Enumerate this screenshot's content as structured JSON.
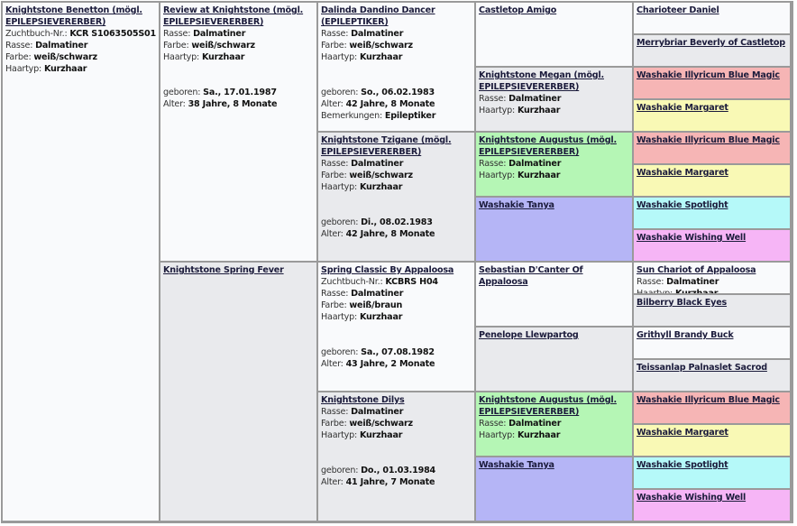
{
  "colors": {
    "border": "#9a9a9a",
    "white": "#f9fafc",
    "gray": "#e9eaed",
    "red": "#f6b5b5",
    "yellow": "#f9f9b5",
    "green": "#b5f6b5",
    "blue": "#b5b5f6",
    "cyan": "#b5f9f9",
    "magenta": "#f6b5f6"
  },
  "generations": [
    [
      {
        "bg": "white",
        "name": "Knightstone Benetton (mögl. EPILEPSIEVERERBER)",
        "fields": [
          {
            "label": "Zuchtbuch-Nr.: ",
            "value": "KCR S1063505S01"
          },
          {
            "label": "Rasse: ",
            "value": "Dalmatiner"
          },
          {
            "label": "Farbe: ",
            "value": "weiß/schwarz"
          },
          {
            "label": "Haartyp: ",
            "value": "Kurzhaar"
          }
        ],
        "birth": []
      }
    ],
    [
      {
        "bg": "white",
        "name": "Review at Knightstone (mögl. EPILEPSIEVERERBER)",
        "fields": [
          {
            "label": "Rasse: ",
            "value": "Dalmatiner"
          },
          {
            "label": "Farbe: ",
            "value": "weiß/schwarz"
          },
          {
            "label": "Haartyp: ",
            "value": "Kurzhaar"
          }
        ],
        "birth": [
          {
            "label": "geboren: ",
            "value": "Sa., 17.01.1987"
          },
          {
            "label": "Alter: ",
            "value": "38 Jahre, 8 Monate"
          }
        ]
      },
      {
        "bg": "gray",
        "name": "Knightstone Spring Fever",
        "fields": [],
        "birth": []
      }
    ],
    [
      {
        "bg": "white",
        "name": "Dalinda Dandino Dancer (EPILEPTIKER)",
        "fields": [
          {
            "label": "Rasse: ",
            "value": "Dalmatiner"
          },
          {
            "label": "Farbe: ",
            "value": "weiß/schwarz"
          },
          {
            "label": "Haartyp: ",
            "value": "Kurzhaar"
          }
        ],
        "birth": [
          {
            "label": "geboren: ",
            "value": "So., 06.02.1983"
          },
          {
            "label": "Alter: ",
            "value": "42 Jahre, 8 Monate"
          },
          {
            "label": "Bemerkungen: ",
            "value": "Epileptiker"
          }
        ]
      },
      {
        "bg": "gray",
        "name": "Knightstone Tzigane (mögl. EPILEPSIEVERERBER)",
        "fields": [
          {
            "label": "Rasse: ",
            "value": "Dalmatiner"
          },
          {
            "label": "Farbe: ",
            "value": "weiß/schwarz"
          },
          {
            "label": "Haartyp: ",
            "value": "Kurzhaar"
          }
        ],
        "birth": [
          {
            "label": "geboren: ",
            "value": "Di., 08.02.1983"
          },
          {
            "label": "Alter: ",
            "value": "42 Jahre, 8 Monate"
          }
        ]
      },
      {
        "bg": "white",
        "name": "Spring Classic By Appaloosa",
        "fields": [
          {
            "label": "Zuchtbuch-Nr.: ",
            "value": "KCBRS H04"
          },
          {
            "label": "Rasse: ",
            "value": "Dalmatiner"
          },
          {
            "label": "Farbe: ",
            "value": "weiß/braun"
          },
          {
            "label": "Haartyp: ",
            "value": "Kurzhaar"
          }
        ],
        "birth": [
          {
            "label": "geboren: ",
            "value": "Sa., 07.08.1982"
          },
          {
            "label": "Alter: ",
            "value": "43 Jahre, 2 Monate"
          }
        ]
      },
      {
        "bg": "gray",
        "name": "Knightstone Dilys",
        "fields": [
          {
            "label": "Rasse: ",
            "value": "Dalmatiner"
          },
          {
            "label": "Farbe: ",
            "value": "weiß/schwarz"
          },
          {
            "label": "Haartyp: ",
            "value": "Kurzhaar"
          }
        ],
        "birth": [
          {
            "label": "geboren: ",
            "value": "Do., 01.03.1984"
          },
          {
            "label": "Alter: ",
            "value": "41 Jahre, 7 Monate"
          }
        ]
      }
    ],
    [
      {
        "bg": "white",
        "name": "Castletop Amigo",
        "fields": [],
        "birth": []
      },
      {
        "bg": "gray",
        "name": "Knightstone Megan (mögl. EPILEPSIEVERERBER)",
        "fields": [
          {
            "label": "Rasse: ",
            "value": "Dalmatiner"
          },
          {
            "label": "Haartyp: ",
            "value": "Kurzhaar"
          }
        ],
        "birth": []
      },
      {
        "bg": "green",
        "name": "Knightstone Augustus (mögl. EPILEPSIEVERERBER)",
        "fields": [
          {
            "label": "Rasse: ",
            "value": "Dalmatiner"
          },
          {
            "label": "Haartyp: ",
            "value": "Kurzhaar"
          }
        ],
        "birth": []
      },
      {
        "bg": "blue",
        "name": "Washakie Tanya",
        "fields": [],
        "birth": []
      },
      {
        "bg": "white",
        "name": "Sebastian D'Canter Of Appaloosa",
        "fields": [],
        "birth": []
      },
      {
        "bg": "gray",
        "name": "Penelope Llewpartog",
        "fields": [],
        "birth": []
      },
      {
        "bg": "green",
        "name": "Knightstone Augustus (mögl. EPILEPSIEVERERBER)",
        "fields": [
          {
            "label": "Rasse: ",
            "value": "Dalmatiner"
          },
          {
            "label": "Haartyp: ",
            "value": "Kurzhaar"
          }
        ],
        "birth": []
      },
      {
        "bg": "blue",
        "name": "Washakie Tanya",
        "fields": [],
        "birth": []
      }
    ],
    [
      {
        "bg": "white",
        "name": "Charioteer Daniel",
        "fields": [],
        "birth": []
      },
      {
        "bg": "gray",
        "name": "Merrybriar Beverly of Castletop",
        "fields": [],
        "birth": []
      },
      {
        "bg": "red",
        "name": "Washakie Illyricum Blue Magic",
        "fields": [],
        "birth": []
      },
      {
        "bg": "yellow",
        "name": "Washakie Margaret",
        "fields": [],
        "birth": []
      },
      {
        "bg": "red",
        "name": "Washakie Illyricum Blue Magic",
        "fields": [],
        "birth": []
      },
      {
        "bg": "yellow",
        "name": "Washakie Margaret",
        "fields": [],
        "birth": []
      },
      {
        "bg": "cyan",
        "name": "Washakie Spotlight",
        "fields": [],
        "birth": []
      },
      {
        "bg": "magenta",
        "name": "Washakie Wishing Well",
        "fields": [],
        "birth": []
      },
      {
        "bg": "white",
        "name": "Sun Chariot of Appaloosa",
        "fields": [
          {
            "label": "Rasse: ",
            "value": "Dalmatiner"
          },
          {
            "label": "Haartyp: ",
            "value": "Kurzhaar"
          }
        ],
        "birth": []
      },
      {
        "bg": "gray",
        "name": "Bilberry Black Eyes",
        "fields": [],
        "birth": []
      },
      {
        "bg": "white",
        "name": "Grithyll Brandy Buck",
        "fields": [],
        "birth": []
      },
      {
        "bg": "gray",
        "name": "Teissanlap Palnaslet Sacrod",
        "fields": [],
        "birth": []
      },
      {
        "bg": "red",
        "name": "Washakie Illyricum Blue Magic",
        "fields": [],
        "birth": []
      },
      {
        "bg": "yellow",
        "name": "Washakie Margaret",
        "fields": [],
        "birth": []
      },
      {
        "bg": "cyan",
        "name": "Washakie Spotlight",
        "fields": [],
        "birth": []
      },
      {
        "bg": "magenta",
        "name": "Washakie Wishing Well",
        "fields": [],
        "birth": []
      }
    ]
  ]
}
